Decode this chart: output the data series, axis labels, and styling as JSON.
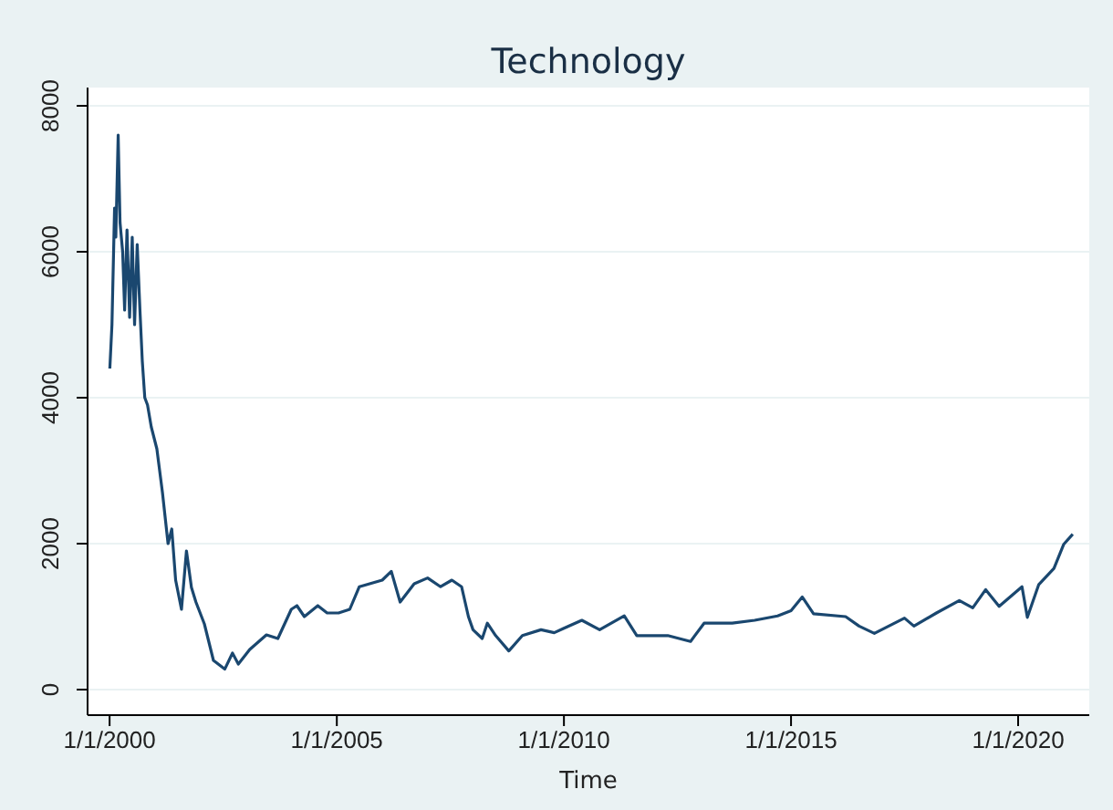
{
  "chart_data": {
    "type": "line",
    "title": "Technology",
    "xlabel": "Time",
    "grid": "y",
    "line_style": "solid",
    "xlim": [
      "1999-07-08",
      "2021-07-26"
    ],
    "ylim": [
      -350,
      8250
    ],
    "yticks": [
      0,
      2000,
      4000,
      6000,
      8000
    ],
    "xticks": [
      {
        "value": "2000-01-01",
        "label": "1/1/2000"
      },
      {
        "value": "2005-01-01",
        "label": "1/1/2005"
      },
      {
        "value": "2010-01-01",
        "label": "1/1/2010"
      },
      {
        "value": "2015-01-01",
        "label": "1/1/2015"
      },
      {
        "value": "2020-01-01",
        "label": "1/1/2020"
      }
    ],
    "series": [
      {
        "color": "#1a476f",
        "x": [
          "2000-01-03",
          "2000-01-20",
          "2000-02-10",
          "2000-02-20",
          "2000-03-10",
          "2000-03-25",
          "2000-04-15",
          "2000-05-01",
          "2000-05-20",
          "2000-06-10",
          "2000-07-01",
          "2000-07-20",
          "2000-08-10",
          "2000-09-01",
          "2000-09-20",
          "2000-10-10",
          "2000-11-01",
          "2000-12-01",
          "2001-01-15",
          "2001-03-01",
          "2001-04-15",
          "2001-05-15",
          "2001-06-15",
          "2001-08-01",
          "2001-09-10",
          "2001-10-20",
          "2001-11-25",
          "2002-02-01",
          "2002-04-15",
          "2002-07-15",
          "2002-09-15",
          "2002-11-01",
          "2003-02-01",
          "2003-06-15",
          "2003-09-15",
          "2004-01-01",
          "2004-02-15",
          "2004-04-15",
          "2004-08-01",
          "2004-10-15",
          "2005-01-15",
          "2005-04-15",
          "2005-07-01",
          "2006-01-01",
          "2006-03-15",
          "2006-05-25",
          "2006-09-15",
          "2007-01-01",
          "2007-04-15",
          "2007-07-15",
          "2007-10-01",
          "2007-11-25",
          "2008-01-01",
          "2008-03-15",
          "2008-04-25",
          "2008-07-01",
          "2008-10-15",
          "2009-02-01",
          "2009-07-01",
          "2009-10-15",
          "2010-01-01",
          "2010-05-25",
          "2010-10-15",
          "2011-05-01",
          "2011-08-10",
          "2012-04-15",
          "2012-10-15",
          "2013-02-01",
          "2013-09-15",
          "2014-03-15",
          "2014-09-15",
          "2015-01-01",
          "2015-04-01",
          "2015-07-01",
          "2016-03-15",
          "2016-07-01",
          "2016-11-01",
          "2017-07-01",
          "2017-09-15",
          "2018-03-15",
          "2018-09-15",
          "2019-01-01",
          "2019-04-15",
          "2019-08-01",
          "2020-02-01",
          "2020-03-15",
          "2020-06-15",
          "2020-10-15",
          "2021-01-01",
          "2021-03-15"
        ],
        "values": [
          4400,
          5000,
          6600,
          6200,
          7600,
          6400,
          6000,
          5200,
          6300,
          5100,
          6200,
          5000,
          6100,
          5200,
          4500,
          4000,
          3900,
          3600,
          3300,
          2700,
          2000,
          2200,
          1500,
          1100,
          1900,
          1400,
          1200,
          900,
          400,
          280,
          500,
          350,
          550,
          750,
          700,
          1100,
          1150,
          1000,
          1150,
          1050,
          1050,
          1100,
          1410,
          1500,
          1620,
          1200,
          1450,
          1530,
          1410,
          1500,
          1410,
          1000,
          820,
          700,
          910,
          740,
          530,
          740,
          820,
          780,
          840,
          950,
          820,
          1010,
          740,
          740,
          660,
          910,
          910,
          950,
          1010,
          1080,
          1270,
          1040,
          1000,
          870,
          770,
          980,
          870,
          1050,
          1220,
          1120,
          1370,
          1140,
          1410,
          990,
          1440,
          1660,
          1990,
          2130
        ]
      }
    ]
  }
}
